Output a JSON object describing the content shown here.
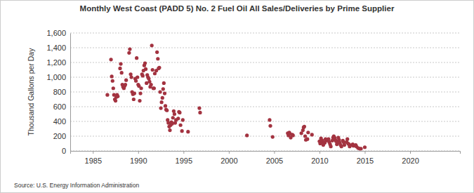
{
  "chart_data": {
    "type": "scatter",
    "title": "Monthly West Coast (PADD 5) No. 2 Fuel Oil All Sales/Deliveries by Prime Supplier",
    "y_label": "Thousand Gallons per Day",
    "source": "Source: U.S. Energy Information Administration",
    "color": "#a33340",
    "marker": "circle",
    "grid": true,
    "xlim": [
      1982.5,
      2025.5
    ],
    "xticks": [
      1985,
      1990,
      1995,
      2000,
      2005,
      2010,
      2015,
      2020
    ],
    "ylim": [
      0,
      1600
    ],
    "yticks": [
      0,
      200,
      400,
      600,
      800,
      {
        "value": 1000,
        "label": "1,000"
      },
      {
        "value": 1200,
        "label": "1,200"
      },
      {
        "value": 1400,
        "label": "1,400"
      },
      {
        "value": 1600,
        "label": "1,600"
      }
    ],
    "x": [
      1986.6,
      1987.0,
      1987.08,
      1987.17,
      1987.25,
      1987.33,
      1987.42,
      1987.5,
      1987.58,
      1987.67,
      1987.75,
      1988.0,
      1988.08,
      1988.17,
      1988.25,
      1988.33,
      1988.42,
      1988.5,
      1988.58,
      1988.67,
      1989.0,
      1989.08,
      1989.17,
      1989.25,
      1989.33,
      1989.42,
      1989.5,
      1989.58,
      1989.67,
      1989.75,
      1989.83,
      1989.92,
      1990.0,
      1990.08,
      1990.17,
      1990.25,
      1990.33,
      1990.42,
      1990.5,
      1990.58,
      1990.67,
      1990.75,
      1990.83,
      1990.92,
      1991.0,
      1991.08,
      1991.17,
      1991.25,
      1991.33,
      1991.42,
      1991.5,
      1991.58,
      1991.67,
      1991.75,
      1991.83,
      1992.0,
      1992.08,
      1992.17,
      1992.25,
      1992.33,
      1992.42,
      1992.5,
      1992.58,
      1992.67,
      1992.75,
      1992.83,
      1992.92,
      1993.0,
      1993.08,
      1993.17,
      1993.25,
      1993.33,
      1993.42,
      1993.5,
      1993.58,
      1993.67,
      1993.75,
      1993.83,
      1993.92,
      1994.0,
      1994.08,
      1994.17,
      1994.42,
      1994.5,
      1994.58,
      1994.67,
      1994.83,
      1994.92,
      1995.5,
      1996.75,
      1996.83,
      2002.0,
      2004.5,
      2004.58,
      2004.83,
      2006.5,
      2006.58,
      2006.67,
      2006.75,
      2006.83,
      2007.0,
      2007.08,
      2008.0,
      2008.17,
      2008.25,
      2008.33,
      2008.42,
      2008.5,
      2008.67,
      2008.75,
      2009.17,
      2010.0,
      2010.08,
      2010.17,
      2010.25,
      2010.33,
      2010.42,
      2010.58,
      2010.67,
      2010.75,
      2011.0,
      2011.08,
      2011.17,
      2011.25,
      2011.42,
      2011.5,
      2011.58,
      2011.67,
      2011.75,
      2011.83,
      2011.92,
      2012.0,
      2012.08,
      2012.17,
      2012.25,
      2012.33,
      2012.42,
      2012.58,
      2012.67,
      2012.75,
      2013.0,
      2013.08,
      2013.17,
      2013.25,
      2013.33,
      2013.58,
      2013.67,
      2013.75,
      2014.0,
      2014.08,
      2014.25,
      2014.42,
      2014.58,
      2015.0
    ],
    "values": [
      760,
      1240,
      1010,
      950,
      850,
      760,
      700,
      680,
      730,
      760,
      740,
      1120,
      1180,
      1060,
      900,
      870,
      850,
      880,
      900,
      960,
      1330,
      1380,
      1040,
      1000,
      800,
      770,
      700,
      780,
      980,
      950,
      1260,
      1000,
      900,
      880,
      680,
      780,
      850,
      1040,
      1020,
      1090,
      1160,
      1190,
      1110,
      920,
      1030,
      1000,
      980,
      940,
      870,
      900,
      1430,
      1100,
      850,
      850,
      1050,
      1090,
      1340,
      1250,
      1120,
      1130,
      800,
      580,
      660,
      720,
      840,
      920,
      780,
      610,
      560,
      550,
      420,
      380,
      330,
      280,
      350,
      390,
      370,
      450,
      540,
      500,
      380,
      420,
      440,
      530,
      520,
      350,
      270,
      420,
      260,
      580,
      520,
      210,
      420,
      340,
      190,
      240,
      210,
      250,
      230,
      180,
      220,
      210,
      240,
      280,
      320,
      330,
      200,
      150,
      160,
      250,
      220,
      130,
      100,
      170,
      120,
      140,
      80,
      110,
      160,
      140,
      160,
      120,
      90,
      60,
      140,
      180,
      200,
      180,
      150,
      130,
      90,
      130,
      180,
      150,
      110,
      80,
      60,
      140,
      120,
      80,
      120,
      160,
      100,
      90,
      60,
      80,
      90,
      70,
      80,
      60,
      40,
      30,
      30,
      50
    ]
  }
}
